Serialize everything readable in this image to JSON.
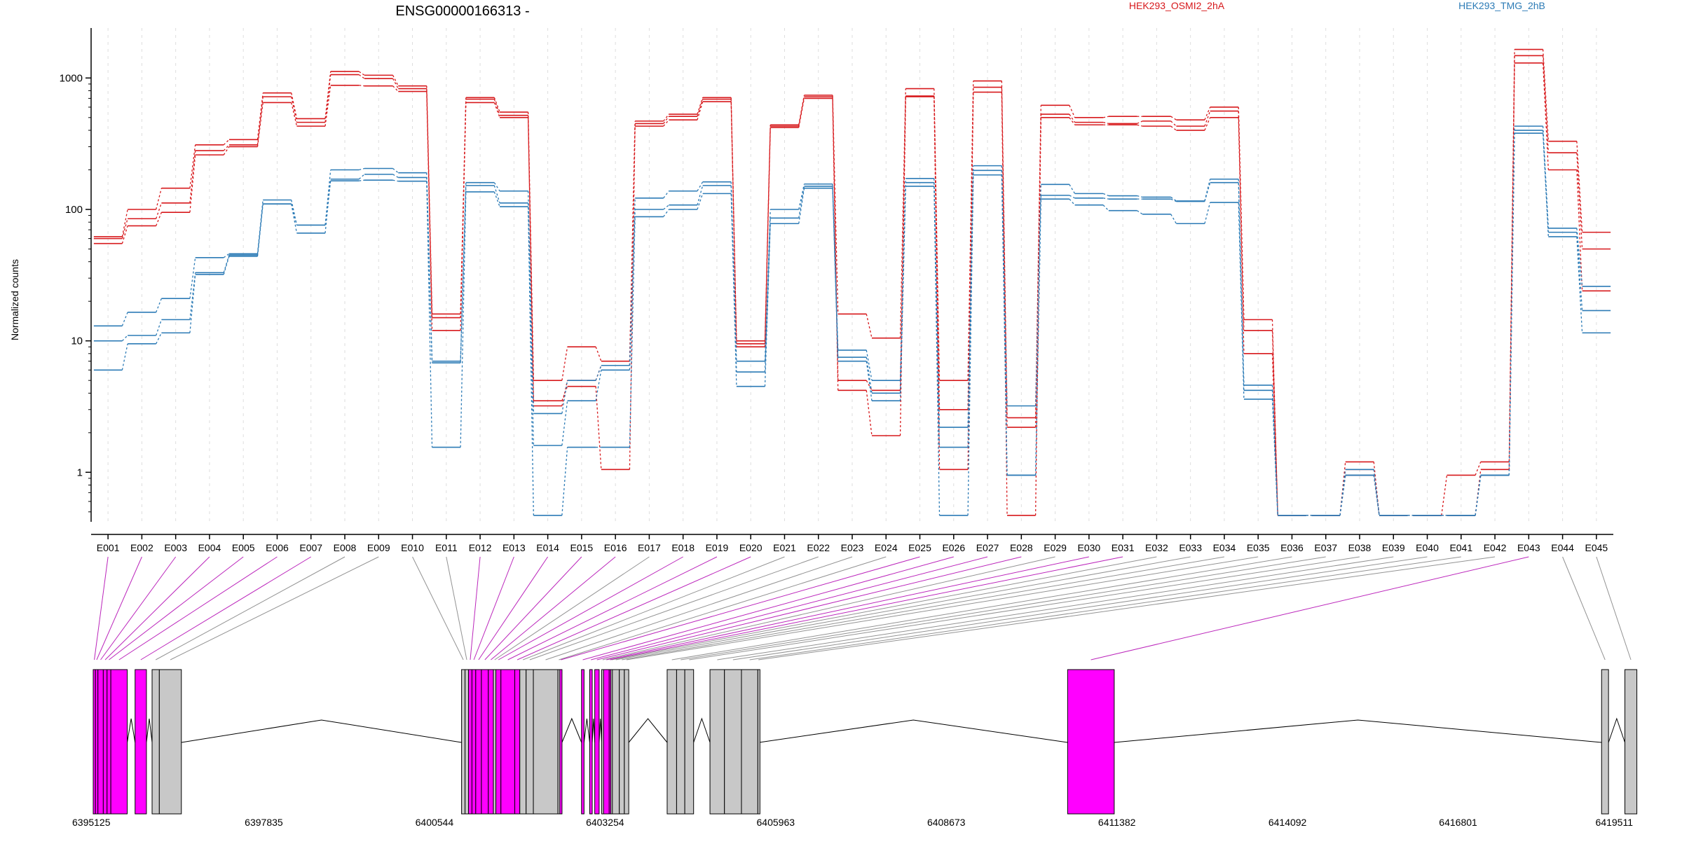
{
  "title": "ENSG00000166313 -",
  "colors": {
    "cond_a": "#d7191c",
    "cond_b": "#2c7bb6",
    "exon_sig": "#ff00ff",
    "exon_ns": "#c8c8c8",
    "exon_ns_line": "#808080",
    "exon_sig_line": "#b000b0",
    "axis": "#000000",
    "grid": "#c8c8c8"
  },
  "chart_data": {
    "type": "line",
    "title": "ENSG00000166313 -",
    "ylabel": "Normalized counts",
    "xlabel": "",
    "y_scale": "log",
    "yticks": [
      "1",
      "10",
      "100",
      "1000"
    ],
    "ylim": [
      0.42,
      2400
    ],
    "legend": [
      {
        "name": "HEK293_OSMI2_2hA",
        "color": "#d7191c"
      },
      {
        "name": "HEK293_TMG_2hB",
        "color": "#2c7bb6"
      }
    ],
    "categories": [
      "E001",
      "E002",
      "E003",
      "E004",
      "E005",
      "E006",
      "E007",
      "E008",
      "E009",
      "E010",
      "E011",
      "E012",
      "E013",
      "E014",
      "E015",
      "E016",
      "E017",
      "E018",
      "E019",
      "E020",
      "E021",
      "E022",
      "E023",
      "E024",
      "E025",
      "E026",
      "E027",
      "E028",
      "E029",
      "E030",
      "E031",
      "E032",
      "E033",
      "E034",
      "E035",
      "E036",
      "E037",
      "E038",
      "E039",
      "E040",
      "E041",
      "E042",
      "E043",
      "E044",
      "E045"
    ],
    "series": [
      {
        "name": "HEK293_OSMI2_2hA",
        "group": "A",
        "values": [
          62,
          100,
          145,
          310,
          340,
          770,
          490,
          1120,
          1050,
          870,
          16,
          710,
          550,
          5,
          9,
          7,
          470,
          530,
          710,
          10,
          440,
          740,
          16,
          10.5,
          830,
          5,
          950,
          2.6,
          620,
          500,
          510,
          510,
          480,
          600,
          14.5,
          0.47,
          0.47,
          1.2,
          0.47,
          0.47,
          0.95,
          1.2,
          1650,
          330,
          67
        ]
      },
      {
        "name": "HEK293_OSMI2_2hA",
        "group": "A",
        "values": [
          60,
          85,
          112,
          280,
          310,
          720,
          460,
          1060,
          990,
          830,
          15,
          690,
          520,
          3.2,
          5,
          6.5,
          450,
          510,
          690,
          9.5,
          430,
          720,
          5,
          4.2,
          730,
          3,
          850,
          0.47,
          530,
          460,
          450,
          470,
          430,
          560,
          12,
          0.47,
          0.47,
          1.05,
          0.47,
          0.47,
          0.47,
          1.05,
          1480,
          270,
          50
        ]
      },
      {
        "name": "HEK293_OSMI2_2hA",
        "group": "A",
        "values": [
          55,
          75,
          95,
          260,
          300,
          650,
          430,
          880,
          870,
          790,
          12,
          650,
          500,
          3.5,
          4.5,
          1.05,
          430,
          480,
          660,
          9,
          420,
          700,
          4.2,
          1.9,
          720,
          1.05,
          780,
          2.2,
          500,
          440,
          440,
          430,
          400,
          500,
          8,
          0.47,
          0.47,
          0.95,
          0.47,
          0.47,
          0.47,
          0.95,
          1300,
          200,
          24
        ]
      },
      {
        "name": "HEK293_TMG_2hB",
        "group": "B",
        "values": [
          13,
          16.5,
          21,
          43,
          46,
          118,
          76,
          200,
          205,
          190,
          7,
          160,
          138,
          2.8,
          5,
          6.5,
          122,
          138,
          162,
          7,
          100,
          156,
          8.5,
          5,
          172,
          2.2,
          215,
          3.2,
          155,
          132,
          127,
          124,
          116,
          170,
          4.6,
          0.47,
          0.47,
          1.05,
          0.47,
          0.47,
          0.47,
          0.95,
          430,
          72,
          26
        ]
      },
      {
        "name": "HEK293_TMG_2hB",
        "group": "B",
        "values": [
          10,
          11,
          14.5,
          33,
          45,
          110,
          66,
          170,
          185,
          175,
          6.8,
          152,
          112,
          1.6,
          3.5,
          6,
          100,
          108,
          152,
          5.8,
          86,
          150,
          7.5,
          4,
          160,
          1.55,
          198,
          0.95,
          128,
          122,
          120,
          120,
          115,
          160,
          4.2,
          0.47,
          0.47,
          0.95,
          0.47,
          0.47,
          0.47,
          0.95,
          400,
          67,
          17
        ]
      },
      {
        "name": "HEK293_TMG_2hB",
        "group": "B",
        "values": [
          6,
          9.5,
          11.5,
          32,
          44,
          110,
          76,
          165,
          167,
          164,
          1.55,
          136,
          105,
          0.47,
          1.55,
          1.55,
          88,
          100,
          132,
          4.5,
          78,
          145,
          7,
          3.5,
          150,
          0.47,
          183,
          0.95,
          120,
          108,
          98,
          92,
          78,
          113,
          3.6,
          0.47,
          0.47,
          0.95,
          0.47,
          0.47,
          0.47,
          0.95,
          380,
          62,
          11.5
        ]
      }
    ],
    "gene_model": {
      "coordinate_ticks": [
        "6395125",
        "6397835",
        "6400544",
        "6403254",
        "6405963",
        "6408673",
        "6411382",
        "6414092",
        "6416801",
        "6419511"
      ],
      "axis_range": [
        6395125,
        6419511
      ],
      "exons": [
        {
          "id": "E001",
          "start": 6395125,
          "end": 6395160,
          "significant": true
        },
        {
          "id": "E002",
          "start": 6395160,
          "end": 6395200,
          "significant": true
        },
        {
          "id": "E003",
          "start": 6395200,
          "end": 6395285,
          "significant": true
        },
        {
          "id": "E004",
          "start": 6395285,
          "end": 6395345,
          "significant": true
        },
        {
          "id": "E005",
          "start": 6395345,
          "end": 6395405,
          "significant": true
        },
        {
          "id": "E006",
          "start": 6395405,
          "end": 6395665,
          "significant": true
        },
        {
          "id": "E007",
          "start": 6395790,
          "end": 6395970,
          "significant": true
        },
        {
          "id": "E008",
          "start": 6396060,
          "end": 6396175,
          "significant": false
        },
        {
          "id": "E009",
          "start": 6396175,
          "end": 6396525,
          "significant": false
        },
        {
          "id": "E010",
          "start": 6400975,
          "end": 6401030,
          "significant": false
        },
        {
          "id": "E011",
          "start": 6401030,
          "end": 6401085,
          "significant": false
        },
        {
          "id": "E012",
          "start": 6401085,
          "end": 6401140,
          "significant": true
        },
        {
          "id": "E013",
          "start": 6401140,
          "end": 6401200,
          "significant": true
        },
        {
          "id": "E014",
          "start": 6401200,
          "end": 6401290,
          "significant": true
        },
        {
          "id": "E015",
          "start": 6401290,
          "end": 6401400,
          "significant": true
        },
        {
          "id": "E016",
          "start": 6401400,
          "end": 6401480,
          "significant": true
        },
        {
          "id": "E017",
          "start": 6401480,
          "end": 6401520,
          "significant": false
        },
        {
          "id": "E018",
          "start": 6401520,
          "end": 6401600,
          "significant": true
        },
        {
          "id": "E019",
          "start": 6401600,
          "end": 6401820,
          "significant": true
        },
        {
          "id": "E020",
          "start": 6401820,
          "end": 6401900,
          "significant": true
        },
        {
          "id": "E021",
          "start": 6401900,
          "end": 6402000,
          "significant": false
        },
        {
          "id": "E022",
          "start": 6402000,
          "end": 6402115,
          "significant": false
        },
        {
          "id": "E023",
          "start": 6402115,
          "end": 6402505,
          "significant": false
        },
        {
          "id": "E024",
          "start": 6402505,
          "end": 6402535,
          "significant": false
        },
        {
          "id": "E025",
          "start": 6402535,
          "end": 6402570,
          "significant": true
        },
        {
          "id": "E026",
          "start": 6402880,
          "end": 6402920,
          "significant": true
        },
        {
          "id": "E027",
          "start": 6403010,
          "end": 6403050,
          "significant": true
        },
        {
          "id": "E028",
          "start": 6403090,
          "end": 6403160,
          "significant": true
        },
        {
          "id": "E029",
          "start": 6403200,
          "end": 6403230,
          "significant": false
        },
        {
          "id": "E030",
          "start": 6403230,
          "end": 6403320,
          "significant": true
        },
        {
          "id": "E031",
          "start": 6403320,
          "end": 6403345,
          "significant": true
        },
        {
          "id": "E032",
          "start": 6403345,
          "end": 6403370,
          "significant": false
        },
        {
          "id": "E033",
          "start": 6403370,
          "end": 6403480,
          "significant": false
        },
        {
          "id": "E034",
          "start": 6403480,
          "end": 6403560,
          "significant": false
        },
        {
          "id": "E035",
          "start": 6403560,
          "end": 6403630,
          "significant": false
        },
        {
          "id": "E036",
          "start": 6404240,
          "end": 6404390,
          "significant": false
        },
        {
          "id": "E037",
          "start": 6404390,
          "end": 6404520,
          "significant": false
        },
        {
          "id": "E038",
          "start": 6404520,
          "end": 6404660,
          "significant": false
        },
        {
          "id": "E039",
          "start": 6404920,
          "end": 6405150,
          "significant": false
        },
        {
          "id": "E040",
          "start": 6405150,
          "end": 6405420,
          "significant": false
        },
        {
          "id": "E041",
          "start": 6405420,
          "end": 6405680,
          "significant": false
        },
        {
          "id": "E042",
          "start": 6405680,
          "end": 6405700,
          "significant": false
        },
        {
          "id": "E043",
          "start": 6410600,
          "end": 6411340,
          "significant": true
        },
        {
          "id": "E044",
          "start": 6419080,
          "end": 6419190,
          "significant": false
        },
        {
          "id": "E045",
          "start": 6419450,
          "end": 6419640,
          "significant": false
        }
      ]
    }
  }
}
